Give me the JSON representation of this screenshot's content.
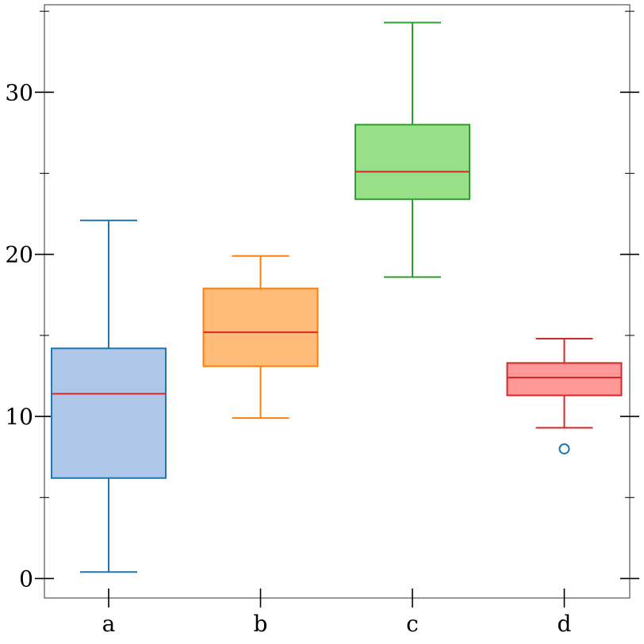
{
  "chart_data": {
    "type": "box",
    "title": "",
    "xlabel": "",
    "ylabel": "",
    "ylim": [
      -1.2,
      35.4
    ],
    "y_major_ticks": [
      0,
      10,
      20,
      30
    ],
    "y_tick_labels": [
      "0",
      "10",
      "20",
      "30"
    ],
    "y_minor_ticks": [
      5,
      15,
      25,
      35
    ],
    "categories": [
      "a",
      "b",
      "c",
      "d"
    ],
    "grid": false,
    "median_color": "#d62728",
    "series": [
      {
        "category": "a",
        "whisker_low": 0.4,
        "q1": 6.2,
        "median": 11.4,
        "q3": 14.2,
        "whisker_high": 22.1,
        "outliers": [],
        "face_color": "#aec7e8",
        "edge_color": "#1f77b4"
      },
      {
        "category": "b",
        "whisker_low": 9.9,
        "q1": 13.1,
        "median": 15.2,
        "q3": 17.9,
        "whisker_high": 19.9,
        "outliers": [],
        "face_color": "#ffbb78",
        "edge_color": "#ff7f0e"
      },
      {
        "category": "c",
        "whisker_low": 18.6,
        "q1": 23.4,
        "median": 25.1,
        "q3": 28.0,
        "whisker_high": 34.3,
        "outliers": [],
        "face_color": "#98df8a",
        "edge_color": "#2ca02c"
      },
      {
        "category": "d",
        "whisker_low": 9.3,
        "q1": 11.3,
        "median": 12.4,
        "q3": 13.3,
        "whisker_high": 14.8,
        "outliers": [
          8.0
        ],
        "face_color": "#ff9896",
        "edge_color": "#d62728",
        "outlier_color": "#1f77b4"
      }
    ]
  }
}
